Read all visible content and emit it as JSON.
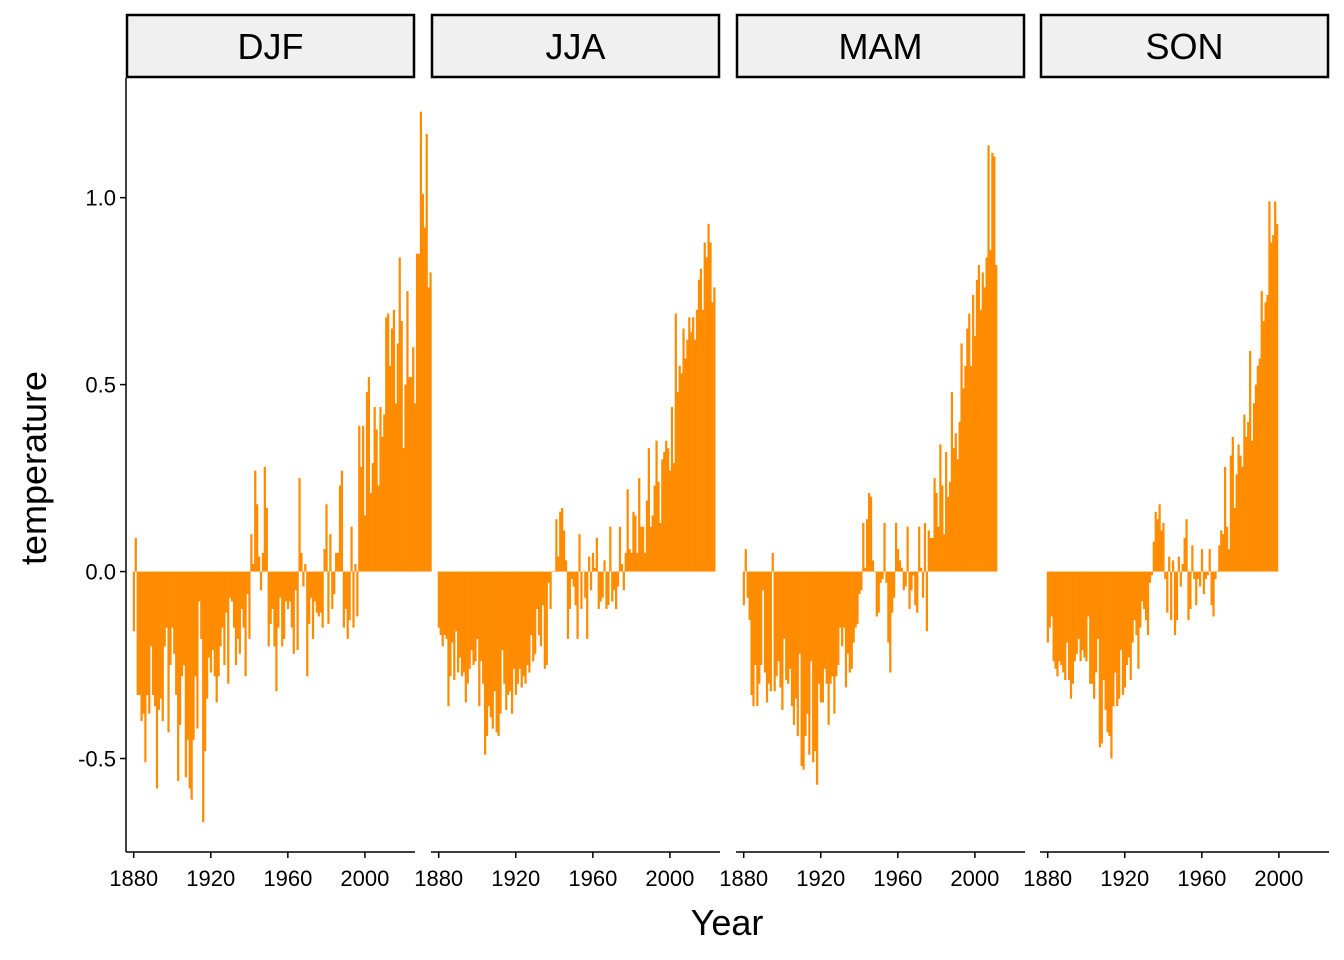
{
  "chart_data": {
    "type": "bar",
    "xlabel": "Year",
    "ylabel": "temperature",
    "x_range": [
      1876,
      2026
    ],
    "ylim": [
      -0.75,
      1.32
    ],
    "x_ticks": [
      1880,
      1920,
      1960,
      2000
    ],
    "x_tick_labels": [
      "1880",
      "1920",
      "1960",
      "2000"
    ],
    "y_ticks": [
      -0.5,
      0.0,
      0.5,
      1.0
    ],
    "y_tick_labels": [
      "-0.5",
      "0.0",
      "0.5",
      "1.0"
    ],
    "grid": false,
    "bar_color": "#FF8C00",
    "strip_fill": "#F0F0F0",
    "x_start_year": 1880,
    "panels": [
      {
        "name": "DJF",
        "values": [
          -0.16,
          0.09,
          -0.33,
          -0.33,
          -0.4,
          -0.38,
          -0.51,
          -0.33,
          -0.38,
          -0.2,
          -0.33,
          -0.36,
          -0.58,
          -0.37,
          -0.34,
          -0.4,
          -0.2,
          -0.15,
          -0.43,
          -0.25,
          -0.15,
          -0.22,
          -0.33,
          -0.56,
          -0.41,
          -0.28,
          -0.25,
          -0.55,
          -0.45,
          -0.58,
          -0.61,
          -0.45,
          -0.28,
          -0.42,
          -0.08,
          -0.18,
          -0.67,
          -0.48,
          -0.34,
          -0.23,
          -0.27,
          -0.21,
          -0.28,
          -0.35,
          -0.28,
          -0.2,
          -0.15,
          -0.25,
          -0.11,
          -0.3,
          -0.07,
          -0.08,
          -0.15,
          -0.25,
          -0.18,
          -0.22,
          -0.1,
          -0.15,
          -0.28,
          -0.06,
          -0.18,
          0.1,
          0.02,
          0.27,
          0.18,
          0.04,
          -0.05,
          0.05,
          0.28,
          0.17,
          -0.2,
          -0.14,
          -0.1,
          -0.2,
          -0.32,
          -0.15,
          -0.07,
          -0.2,
          -0.18,
          -0.08,
          -0.1,
          -0.08,
          -0.15,
          -0.22,
          -0.05,
          -0.21,
          0.25,
          0.05,
          -0.04,
          0.02,
          -0.28,
          -0.14,
          -0.07,
          -0.18,
          -0.08,
          -0.11,
          -0.12,
          -0.11,
          -0.15,
          0.06,
          0.18,
          -0.14,
          0.1,
          -0.1,
          -0.06,
          0.05,
          0.05,
          0.23,
          0.27,
          -0.15,
          -0.1,
          -0.18,
          -0.13,
          0.12,
          -0.15,
          0.02,
          -0.12,
          0.39,
          0.28,
          0.39,
          0.15,
          0.48,
          0.52,
          0.21,
          0.29,
          0.44,
          0.38,
          0.23,
          0.44,
          0.36,
          0.42,
          0.68,
          0.69,
          0.55,
          0.65,
          0.7,
          0.45,
          0.61,
          0.84,
          0.67,
          0.33,
          0.5,
          0.75,
          0.52,
          0.52,
          0.6,
          0.45,
          0.85,
          0.85,
          1.23,
          1.01,
          0.92,
          1.17,
          0.76,
          0.8
        ]
      },
      {
        "name": "JJA",
        "values": [
          -0.15,
          -0.17,
          -0.2,
          -0.17,
          -0.18,
          -0.36,
          -0.28,
          -0.19,
          -0.29,
          -0.16,
          -0.27,
          -0.23,
          -0.28,
          -0.27,
          -0.35,
          -0.3,
          -0.26,
          -0.21,
          -0.25,
          -0.24,
          -0.18,
          -0.36,
          -0.24,
          -0.3,
          -0.49,
          -0.44,
          -0.36,
          -0.39,
          -0.42,
          -0.32,
          -0.43,
          -0.44,
          -0.38,
          -0.21,
          -0.3,
          -0.37,
          -0.33,
          -0.32,
          -0.38,
          -0.26,
          -0.33,
          -0.3,
          -0.26,
          -0.31,
          -0.28,
          -0.3,
          -0.25,
          -0.27,
          -0.17,
          -0.24,
          -0.22,
          -0.1,
          -0.17,
          -0.2,
          -0.09,
          -0.26,
          -0.25,
          -0.03,
          -0.1,
          0.0,
          0.0,
          0.14,
          0.04,
          0.16,
          0.17,
          0.11,
          0.03,
          -0.18,
          -0.1,
          -0.02,
          -0.04,
          -0.09,
          -0.18,
          0.1,
          -0.1,
          0.0,
          -0.07,
          -0.18,
          0.04,
          -0.05,
          0.05,
          0.01,
          0.09,
          -0.1,
          -0.08,
          -0.07,
          0.03,
          -0.1,
          -0.09,
          0.12,
          -0.08,
          -0.05,
          -0.1,
          -0.04,
          0.12,
          0.02,
          -0.05,
          0.05,
          0.22,
          0.06,
          0.05,
          0.16,
          0.15,
          0.05,
          0.25,
          0.12,
          0.12,
          0.05,
          0.19,
          0.33,
          0.12,
          0.15,
          0.23,
          0.35,
          0.24,
          0.13,
          0.3,
          0.32,
          0.35,
          0.33,
          0.27,
          0.44,
          0.29,
          0.69,
          0.48,
          0.55,
          0.53,
          0.65,
          0.57,
          0.62,
          0.68,
          0.64,
          0.68,
          0.62,
          0.7,
          0.78,
          0.81,
          0.7,
          0.88,
          0.84,
          0.93,
          0.88,
          0.72,
          0.76
        ]
      },
      {
        "name": "MAM",
        "values": [
          -0.09,
          0.06,
          -0.07,
          -0.13,
          -0.33,
          -0.36,
          -0.25,
          -0.36,
          -0.3,
          -0.25,
          -0.05,
          -0.27,
          -0.35,
          -0.3,
          -0.32,
          0.05,
          -0.32,
          -0.28,
          -0.24,
          -0.31,
          -0.37,
          -0.18,
          -0.29,
          -0.3,
          -0.26,
          -0.36,
          -0.41,
          -0.34,
          -0.44,
          -0.22,
          -0.52,
          -0.53,
          -0.44,
          -0.38,
          -0.49,
          -0.24,
          -0.51,
          -0.48,
          -0.57,
          -0.3,
          -0.35,
          -0.35,
          -0.26,
          -0.3,
          -0.41,
          -0.3,
          -0.28,
          -0.38,
          -0.28,
          -0.25,
          -0.15,
          -0.2,
          -0.15,
          -0.31,
          -0.22,
          -0.27,
          -0.26,
          -0.19,
          -0.15,
          -0.14,
          -0.06,
          -0.05,
          0.13,
          0.01,
          0.14,
          0.21,
          0.2,
          0.03,
          0.0,
          -0.12,
          -0.11,
          -0.03,
          -0.02,
          0.13,
          -0.03,
          -0.19,
          -0.27,
          -0.11,
          -0.07,
          0.13,
          0.06,
          0.03,
          0.01,
          -0.05,
          -0.04,
          0.12,
          -0.1,
          -0.05,
          -0.01,
          -0.09,
          -0.11,
          0.12,
          0.01,
          -0.07,
          0.13,
          -0.16,
          0.11,
          0.09,
          0.09,
          0.25,
          0.21,
          0.12,
          0.34,
          0.23,
          0.1,
          0.32,
          0.2,
          0.24,
          0.48,
          0.33,
          0.37,
          0.3,
          0.4,
          0.61,
          0.49,
          0.55,
          0.65,
          0.69,
          0.55,
          0.74,
          0.63,
          0.78,
          0.82,
          0.7,
          0.8,
          0.76,
          0.84,
          1.14,
          0.86,
          1.12,
          1.11,
          0.82
        ]
      },
      {
        "name": "SON",
        "values": [
          -0.19,
          -0.15,
          -0.12,
          -0.24,
          -0.26,
          -0.28,
          -0.24,
          -0.25,
          -0.27,
          -0.29,
          -0.19,
          -0.29,
          -0.34,
          -0.3,
          -0.24,
          -0.22,
          -0.18,
          -0.24,
          -0.21,
          -0.23,
          -0.24,
          -0.12,
          -0.3,
          -0.3,
          -0.34,
          -0.27,
          -0.18,
          -0.47,
          -0.46,
          -0.29,
          -0.37,
          -0.43,
          -0.44,
          -0.5,
          -0.36,
          -0.27,
          -0.36,
          -0.34,
          -0.21,
          -0.33,
          -0.31,
          -0.25,
          -0.23,
          -0.29,
          -0.19,
          -0.13,
          -0.17,
          -0.26,
          -0.15,
          -0.08,
          -0.1,
          -0.13,
          -0.17,
          -0.03,
          -0.01,
          0.08,
          0.16,
          0.14,
          0.18,
          0.11,
          0.13,
          -0.02,
          -0.11,
          0.04,
          -0.13,
          0.03,
          -0.17,
          -0.13,
          0.04,
          -0.04,
          0.02,
          0.09,
          0.14,
          -0.13,
          -0.1,
          0.07,
          -0.02,
          -0.09,
          -0.02,
          -0.04,
          0.06,
          -0.06,
          -0.02,
          -0.01,
          0.06,
          -0.09,
          -0.12,
          -0.02,
          0.0,
          0.07,
          0.11,
          0.1,
          0.28,
          0.12,
          0.06,
          0.31,
          0.36,
          0.17,
          0.26,
          0.34,
          0.31,
          0.28,
          0.42,
          0.36,
          0.4,
          0.59,
          0.35,
          0.45,
          0.5,
          0.55,
          0.57,
          0.75,
          0.67,
          0.72,
          0.74,
          0.99,
          0.88,
          0.9,
          0.99,
          0.93
        ]
      }
    ]
  }
}
